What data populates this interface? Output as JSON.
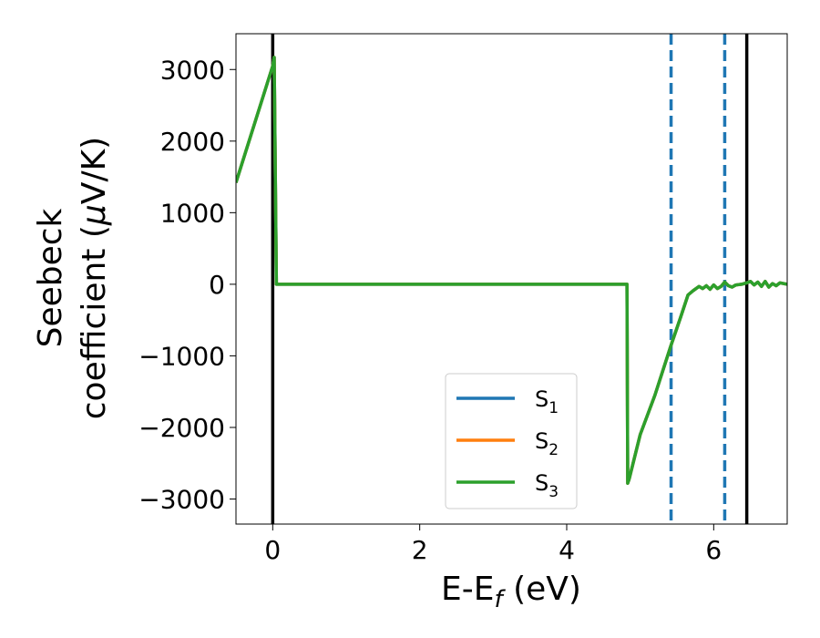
{
  "chart_data": {
    "type": "line",
    "xlabel": {
      "main": "E-E",
      "sub": "f",
      "tail": " (eV)"
    },
    "ylabel": {
      "line1": "Seebeck",
      "line2": "coefficient  (",
      "mu": "μ",
      "tail": "V/K)"
    },
    "xlim": [
      -0.5,
      7.0
    ],
    "ylim": [
      -3350,
      3500
    ],
    "xticks": [
      0,
      2,
      4,
      6
    ],
    "xtick_labels": [
      "0",
      "2",
      "4",
      "6"
    ],
    "yticks": [
      3000,
      2000,
      1000,
      0,
      -1000,
      -2000,
      -3000
    ],
    "ytick_labels": [
      "3000",
      "2000",
      "1000",
      "0",
      "−1000",
      "−2000",
      "−3000"
    ],
    "vertical_lines": [
      {
        "x": 0.0,
        "style": "solid",
        "color": "#000000"
      },
      {
        "x": 6.45,
        "style": "solid",
        "color": "#000000"
      },
      {
        "x": 5.42,
        "style": "dashed",
        "color": "#1f77b4"
      },
      {
        "x": 6.15,
        "style": "dashed",
        "color": "#1f77b4"
      }
    ],
    "legend": {
      "placement": "lower-center"
    },
    "series": [
      {
        "name": "S",
        "sub": "1",
        "color": "#1f77b4",
        "x": [
          -0.5,
          0.0,
          0.02,
          0.05,
          4.82,
          4.83,
          4.85,
          5.0,
          5.2,
          5.42,
          5.55,
          5.65,
          5.72,
          5.8,
          5.85,
          5.9,
          5.95,
          6.0,
          6.05,
          6.1,
          6.15,
          6.2,
          6.25,
          6.3,
          6.38,
          6.45,
          6.5,
          6.55,
          6.6,
          6.65,
          6.7,
          6.75,
          6.8,
          6.85,
          6.9,
          7.0
        ],
        "y": [
          1420,
          3050,
          3170,
          0,
          0,
          -2780,
          -2720,
          -2100,
          -1550,
          -850,
          -460,
          -150,
          -90,
          -30,
          -60,
          -20,
          -70,
          -10,
          -60,
          -30,
          30,
          -20,
          -40,
          -10,
          0,
          20,
          40,
          -10,
          30,
          -30,
          40,
          -40,
          10,
          -20,
          20,
          0
        ]
      },
      {
        "name": "S",
        "sub": "2",
        "color": "#ff7f0e",
        "x": [
          -0.5,
          0.0,
          0.02,
          0.05,
          4.82,
          4.83,
          4.85,
          5.0,
          5.2,
          5.42,
          5.55,
          5.65,
          5.72,
          5.8,
          5.85,
          5.9,
          5.95,
          6.0,
          6.05,
          6.1,
          6.15,
          6.2,
          6.25,
          6.3,
          6.38,
          6.45,
          6.5,
          6.55,
          6.6,
          6.65,
          6.7,
          6.75,
          6.8,
          6.85,
          6.9,
          7.0
        ],
        "y": [
          1420,
          3050,
          3170,
          0,
          0,
          -2780,
          -2720,
          -2100,
          -1550,
          -850,
          -460,
          -150,
          -90,
          -30,
          -60,
          -20,
          -70,
          -10,
          -60,
          -30,
          30,
          -20,
          -40,
          -10,
          0,
          20,
          40,
          -10,
          30,
          -30,
          40,
          -40,
          10,
          -20,
          20,
          0
        ]
      },
      {
        "name": "S",
        "sub": "3",
        "color": "#2ca02c",
        "x": [
          -0.5,
          0.0,
          0.02,
          0.05,
          4.82,
          4.83,
          4.85,
          5.0,
          5.2,
          5.42,
          5.55,
          5.65,
          5.72,
          5.8,
          5.85,
          5.9,
          5.95,
          6.0,
          6.05,
          6.1,
          6.15,
          6.2,
          6.25,
          6.3,
          6.38,
          6.45,
          6.5,
          6.55,
          6.6,
          6.65,
          6.7,
          6.75,
          6.8,
          6.85,
          6.9,
          7.0
        ],
        "y": [
          1420,
          3050,
          3170,
          0,
          0,
          -2780,
          -2720,
          -2100,
          -1550,
          -850,
          -460,
          -150,
          -90,
          -30,
          -60,
          -20,
          -70,
          -10,
          -60,
          -30,
          30,
          -20,
          -40,
          -10,
          0,
          20,
          40,
          -10,
          30,
          -30,
          40,
          -40,
          10,
          -20,
          20,
          0
        ]
      }
    ]
  }
}
